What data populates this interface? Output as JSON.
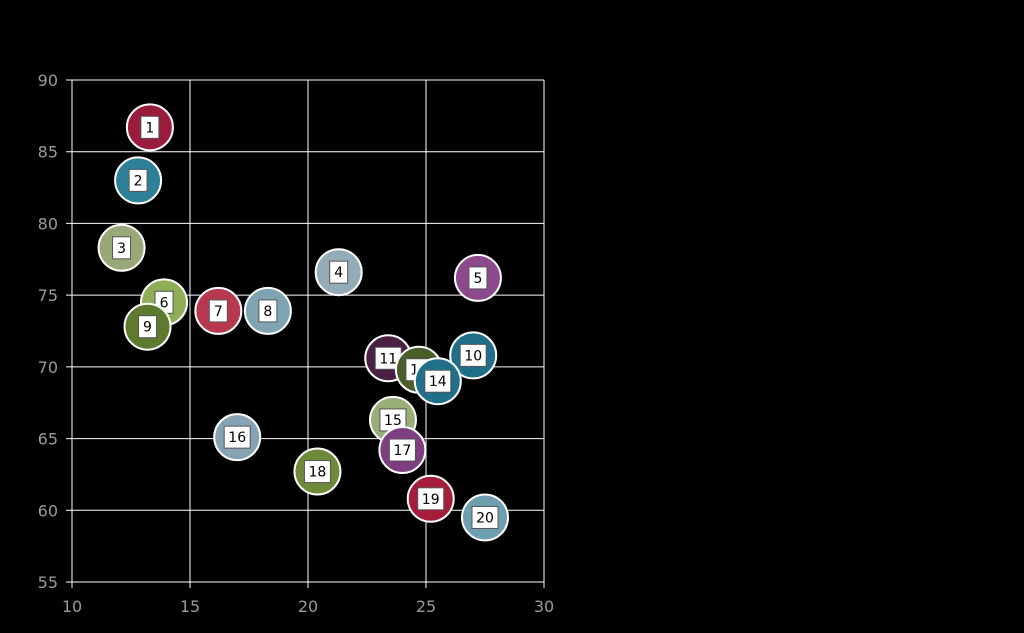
{
  "chart_data": {
    "type": "scatter",
    "title": "",
    "xlabel": "",
    "ylabel": "",
    "xlim": [
      10,
      30
    ],
    "ylim": [
      55,
      90
    ],
    "x_ticks": [
      "10",
      "15",
      "20",
      "25",
      "30"
    ],
    "y_ticks": [
      "55",
      "60",
      "65",
      "70",
      "75",
      "80",
      "85",
      "90"
    ],
    "grid": true,
    "points": [
      {
        "label": "1",
        "x": 13.3,
        "y": 86.7,
        "color": "#9b1b3c"
      },
      {
        "label": "2",
        "x": 12.8,
        "y": 83.0,
        "color": "#2e7f98"
      },
      {
        "label": "3",
        "x": 12.1,
        "y": 78.3,
        "color": "#98a878"
      },
      {
        "label": "4",
        "x": 21.3,
        "y": 76.6,
        "color": "#93acb8"
      },
      {
        "label": "5",
        "x": 27.2,
        "y": 76.2,
        "color": "#8a4a8c"
      },
      {
        "label": "6",
        "x": 13.9,
        "y": 74.5,
        "color": "#8fae55"
      },
      {
        "label": "7",
        "x": 16.2,
        "y": 73.9,
        "color": "#b8384f"
      },
      {
        "label": "8",
        "x": 18.3,
        "y": 73.9,
        "color": "#7ea4b4"
      },
      {
        "label": "9",
        "x": 13.2,
        "y": 72.8,
        "color": "#5e7a2e"
      },
      {
        "label": "10",
        "x": 27.0,
        "y": 70.8,
        "color": "#1f6f8a"
      },
      {
        "label": "11",
        "x": 23.4,
        "y": 70.6,
        "color": "#4a2044"
      },
      {
        "label": "12",
        "x": 24.7,
        "y": 69.8,
        "color": "#4a5e2a"
      },
      {
        "label": "14",
        "x": 25.5,
        "y": 69.0,
        "color": "#226f8a"
      },
      {
        "label": "15",
        "x": 23.6,
        "y": 66.3,
        "color": "#9aae78"
      },
      {
        "label": "16",
        "x": 17.0,
        "y": 65.1,
        "color": "#86a3b3"
      },
      {
        "label": "17",
        "x": 24.0,
        "y": 64.2,
        "color": "#7e3f80"
      },
      {
        "label": "18",
        "x": 20.4,
        "y": 62.7,
        "color": "#6e8a38"
      },
      {
        "label": "19",
        "x": 25.2,
        "y": 60.8,
        "color": "#a61d3c"
      },
      {
        "label": "20",
        "x": 27.5,
        "y": 59.5,
        "color": "#6e9fb0"
      }
    ]
  },
  "colors": {
    "background": "#000000",
    "grid": "#ffffff",
    "tick_text": "#9a9a9a",
    "label_box": "#ffffff"
  }
}
